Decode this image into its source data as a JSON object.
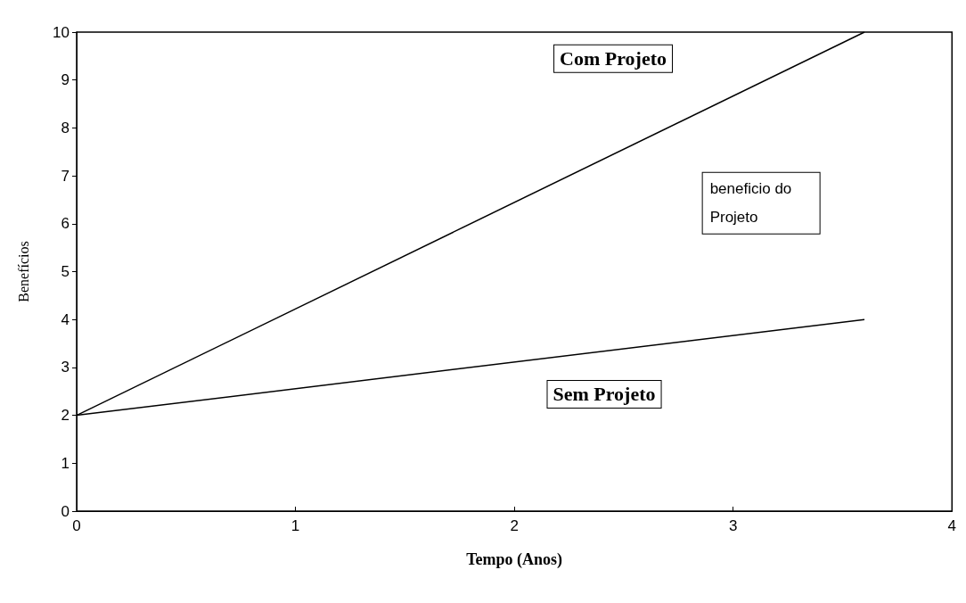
{
  "chart_data": {
    "type": "line",
    "xlabel": "Tempo (Anos)",
    "ylabel": "Benefícios",
    "x": [
      0,
      3.6
    ],
    "series": [
      {
        "name": "Com Projeto",
        "color": "#000000",
        "values": [
          2,
          10
        ]
      },
      {
        "name": "Sem Projeto",
        "color": "#000000",
        "values": [
          2,
          4
        ]
      }
    ],
    "annotations": [
      "beneficio do Projeto"
    ],
    "xlim": [
      0,
      4
    ],
    "xticks": [
      0,
      1,
      2,
      3,
      4
    ],
    "ylim": [
      0,
      10
    ],
    "yticks": [
      0,
      1,
      2,
      3,
      4,
      5,
      6,
      7,
      8,
      9,
      10
    ],
    "grid": false,
    "legend": false,
    "marker": "none",
    "line_style": "solid"
  }
}
